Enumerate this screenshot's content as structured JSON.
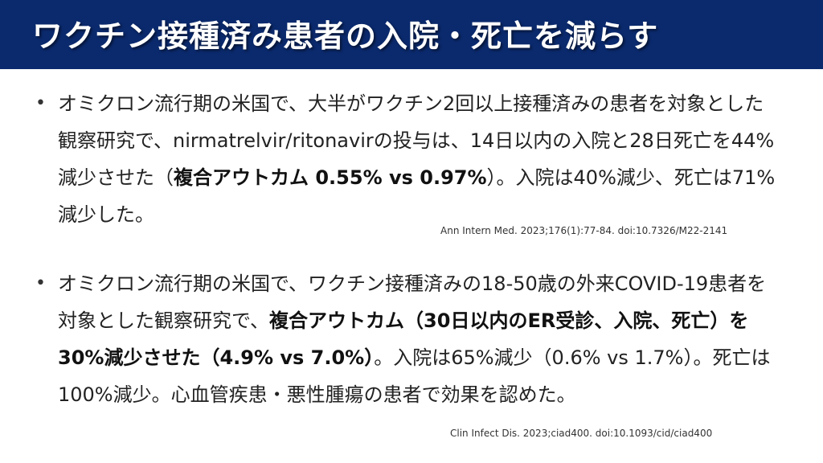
{
  "title": "ワクチン接種済み患者の入院・死亡を減らす",
  "bullet_symbol": "•",
  "bullets": [
    {
      "t1": "オミクロン流行期の米国で、大半がワクチン2回以上接種済みの患者を対象とした観察研究で、nirmatrelvir/ritonavirの投与は、14日以内の入院と28日死亡を44%減少させた（",
      "b1": "複合アウトカム 0.55% vs 0.97%",
      "t2": "）。入院は40%減少、死亡は71%減少した。"
    },
    {
      "t1": "オミクロン流行期の米国で、ワクチン接種済みの18-50歳の外来COVID-19患者を対象とした観察研究で、",
      "b1": "複合アウトカム（30日以内のER受診、入院、死亡）を30%減少させた（4.9% vs 7.0%）",
      "t2": "。入院は65%減少（0.6% vs 1.7%）。死亡は100%減少。心血管疾患・悪性腫瘍の患者で効果を認めた。"
    }
  ],
  "citations": [
    "Ann Intern Med. 2023;176(1):77-84. doi:10.7326/M22-2141",
    "Clin Infect Dis. 2023;ciad400. doi:10.1093/cid/ciad400"
  ]
}
